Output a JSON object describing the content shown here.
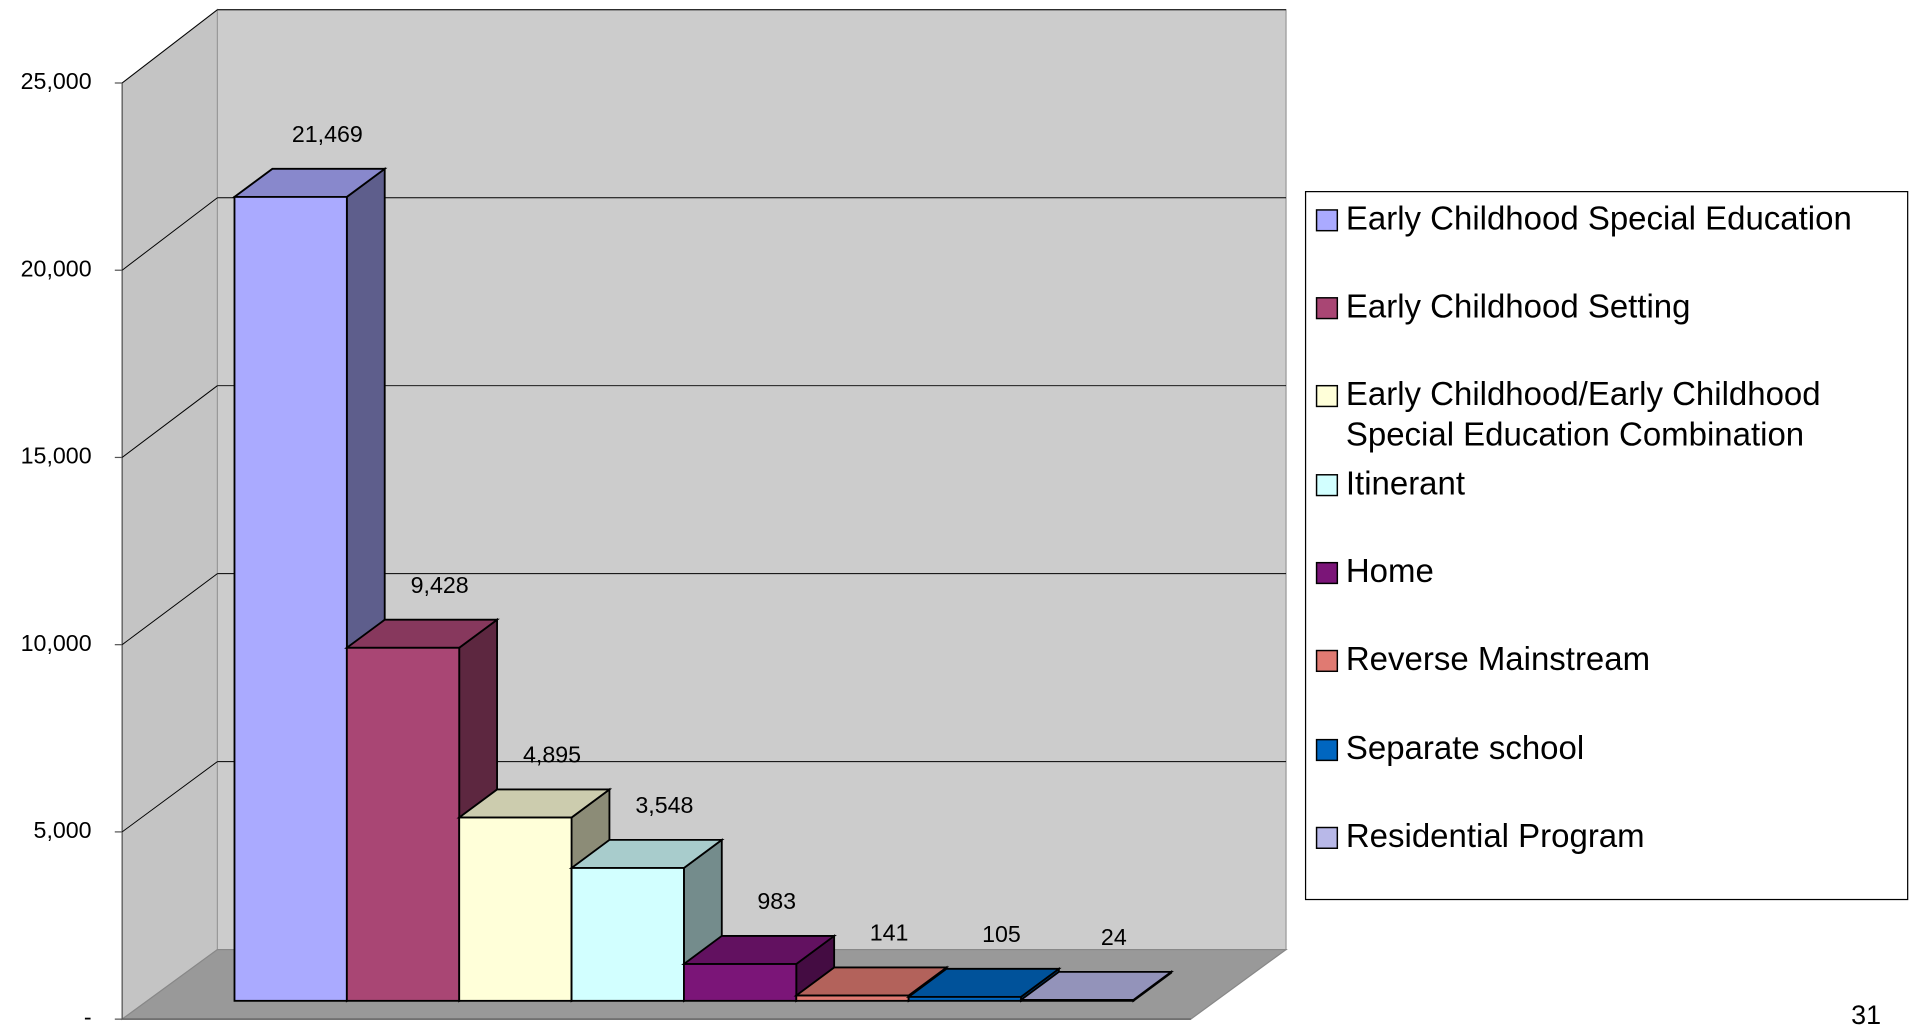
{
  "chart_data": {
    "type": "bar3d",
    "categories": [
      "Early Childhood Special Education",
      "Early Childhood Setting",
      "Early Childhood/Early Childhood Special Education Combination",
      "Itinerant",
      "Home",
      "Reverse Mainstream",
      "Separate school",
      "Residential Program"
    ],
    "values": [
      21469,
      9428,
      4895,
      3548,
      983,
      141,
      105,
      24
    ],
    "value_labels": [
      "21,469",
      "9,428",
      "4,895",
      "3,548",
      "983",
      "141",
      "105",
      "24"
    ],
    "colors": [
      "#aaaaff",
      "#a94674",
      "#ffffd9",
      "#d2ffff",
      "#7b1578",
      "#e07a72",
      "#0066c0",
      "#b8b8e8"
    ],
    "ylim": [
      0,
      25000
    ],
    "yticks": [
      {
        "value": 0,
        "label": "-"
      },
      {
        "value": 5000,
        "label": "5,000"
      },
      {
        "value": 10000,
        "label": "10,000"
      },
      {
        "value": 15000,
        "label": "15,000"
      },
      {
        "value": 20000,
        "label": "20,000"
      },
      {
        "value": 25000,
        "label": "25,000"
      }
    ],
    "grid": true,
    "legend": "right"
  },
  "page_number": "31"
}
